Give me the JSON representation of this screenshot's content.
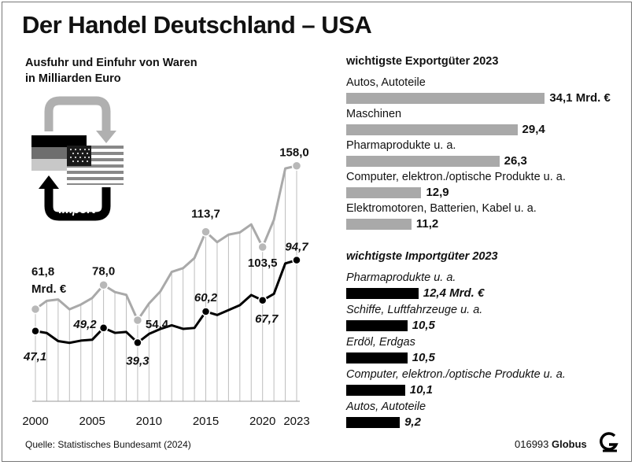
{
  "title": "Der Handel Deutschland – USA",
  "subtitle": [
    "Ausfuhr und Einfuhr von Waren",
    "in Milliarden Euro"
  ],
  "source": "Quelle: Statistisches Bundesamt (2024)",
  "credit_id": "016993",
  "credit_brand": "Globus",
  "colors": {
    "export": "#a9a9a9",
    "import": "#000000",
    "grid": "#bdbdbd"
  },
  "chart_data": [
    {
      "type": "line",
      "x": [
        2000,
        2001,
        2002,
        2003,
        2004,
        2005,
        2006,
        2007,
        2008,
        2009,
        2010,
        2011,
        2012,
        2013,
        2014,
        2015,
        2016,
        2017,
        2018,
        2019,
        2020,
        2021,
        2022,
        2023
      ],
      "xticks": [
        "2000",
        "2005",
        "2010",
        "2015",
        "2020",
        "2023"
      ],
      "series": [
        {
          "name": "Export",
          "values": [
            61.8,
            67.4,
            68.3,
            61.7,
            64.9,
            69.3,
            78.0,
            73.3,
            71.4,
            54.4,
            65.6,
            73.7,
            86.8,
            89.3,
            96.1,
            113.7,
            106.8,
            111.8,
            113.3,
            118.7,
            103.5,
            121.8,
            156.2,
            158.0
          ]
        },
        {
          "name": "Import",
          "values": [
            47.1,
            45.8,
            40.4,
            39.2,
            40.7,
            41.3,
            49.2,
            45.9,
            46.5,
            39.3,
            45.2,
            48.5,
            51.0,
            48.6,
            49.2,
            60.2,
            57.9,
            61.2,
            64.5,
            71.3,
            67.7,
            72.1,
            92.5,
            94.7
          ]
        }
      ],
      "annotations": [
        {
          "x": 2000,
          "series": "Export",
          "label": "61,8",
          "unit": "Mrd. €"
        },
        {
          "x": 2006,
          "series": "Export",
          "label": "78,0"
        },
        {
          "x": 2015,
          "series": "Export",
          "label": "113,7"
        },
        {
          "x": 2020,
          "series": "Export",
          "label": "103,5"
        },
        {
          "x": 2023,
          "series": "Export",
          "label": "158,0"
        },
        {
          "x": 2000,
          "series": "Import",
          "label": "47,1"
        },
        {
          "x": 2006,
          "series": "Import",
          "label": "49,2"
        },
        {
          "x": 2009,
          "series": "Import",
          "label": "39,3"
        },
        {
          "x": 2009,
          "series": "Export",
          "label": "54,4"
        },
        {
          "x": 2015,
          "series": "Import",
          "label": "60,2"
        },
        {
          "x": 2020,
          "series": "Import",
          "label": "67,7"
        },
        {
          "x": 2023,
          "series": "Import",
          "label": "94,7"
        }
      ],
      "ylim": [
        0,
        170
      ],
      "grid": "vertical"
    },
    {
      "type": "bar",
      "title": "wichtigste Exportgüter 2023",
      "categories": [
        "Autos, Autoteile",
        "Maschinen",
        "Pharmaprodukte u. a.",
        "Computer, elektron./optische Produkte u. a.",
        "Elektromotoren, Batterien, Kabel u. a."
      ],
      "values": [
        34.1,
        29.4,
        26.3,
        12.9,
        11.2
      ],
      "value_labels": [
        "34,1 Mrd. €",
        "29,4",
        "26,3",
        "12,9",
        "11,2"
      ]
    },
    {
      "type": "bar",
      "title": "wichtigste Importgüter 2023",
      "categories": [
        "Pharmaprodukte u. a.",
        "Schiffe, Luftfahrzeuge u. a.",
        "Erdöl, Erdgas",
        "Computer, elektron./optische Produkte u. a.",
        "Autos, Autoteile"
      ],
      "values": [
        12.4,
        10.5,
        10.5,
        10.1,
        9.2
      ],
      "value_labels": [
        "12,4 Mrd. €",
        "10,5",
        "10,5",
        "10,1",
        "9,2"
      ]
    }
  ],
  "legend_graphic": {
    "export_label": "Export",
    "import_label": "Import",
    "icons": [
      "germany-flag-icon",
      "usa-flag-icon",
      "arrow-export-icon",
      "arrow-import-icon"
    ]
  },
  "logo_icon": "globus-logo-icon"
}
